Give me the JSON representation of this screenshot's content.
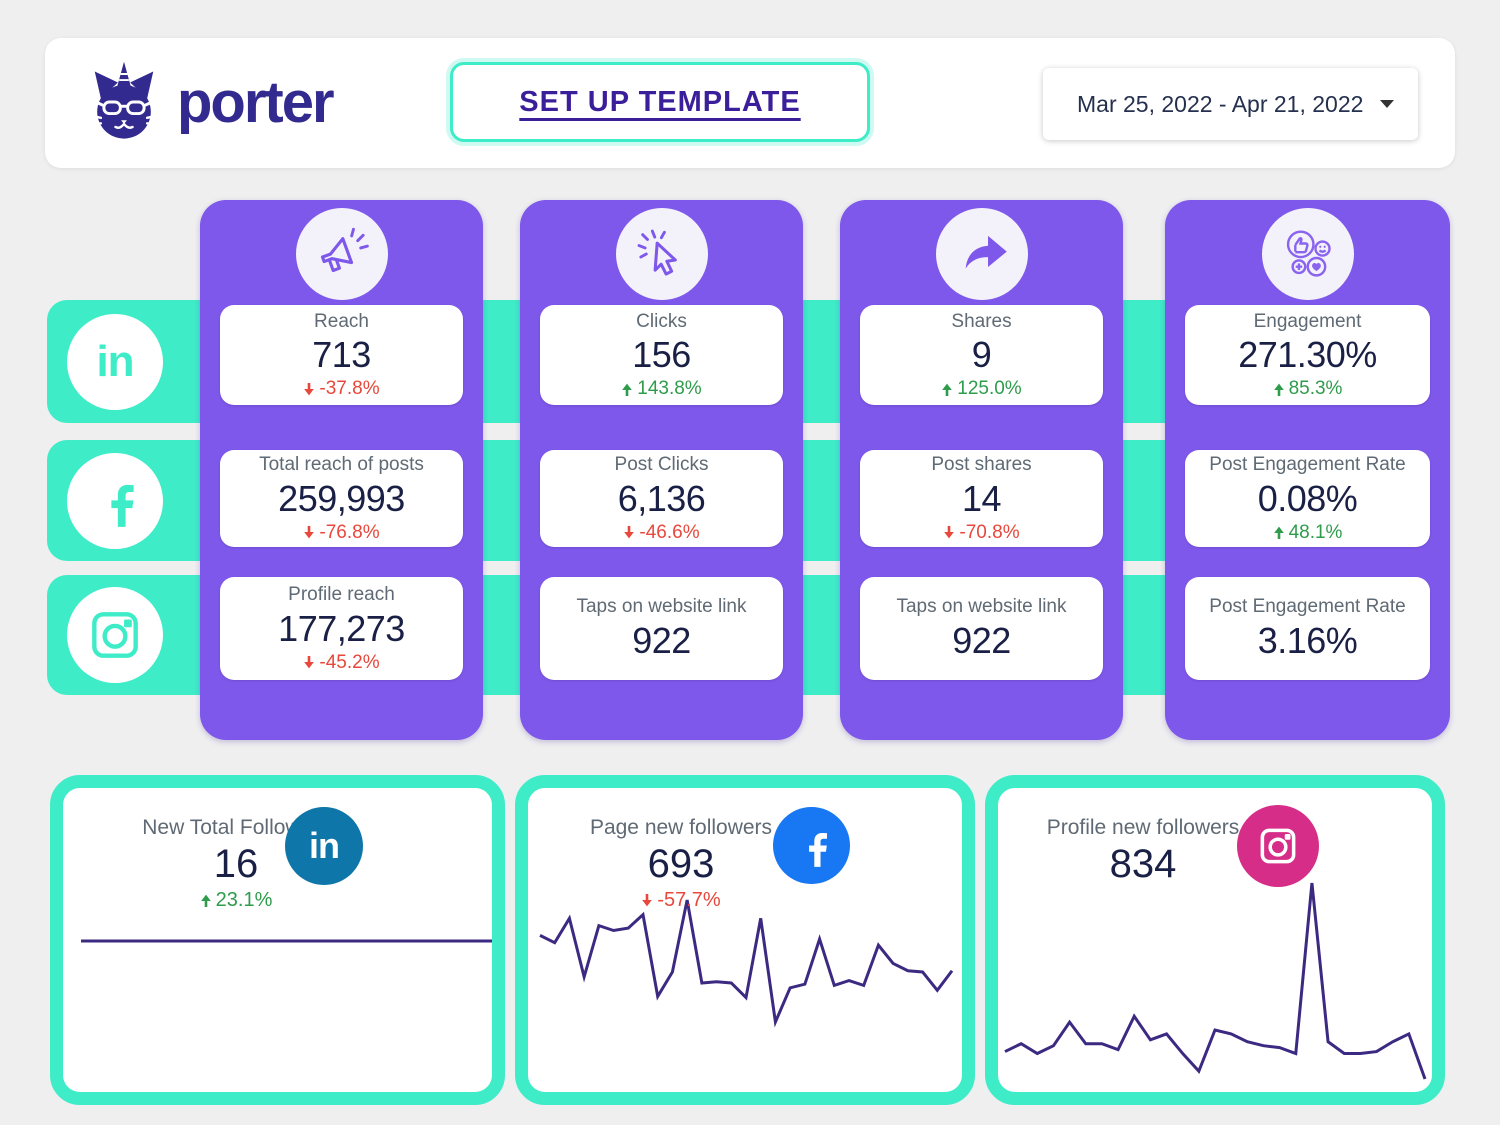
{
  "header": {
    "brand": "porter",
    "setup_button_label": "SET UP TEMPLATE",
    "date_range": "Mar 25, 2022 - Apr 21, 2022"
  },
  "colors": {
    "purple": "#7e57eb",
    "teal": "#3fecc8",
    "value_navy": "#1a2045",
    "delta_red": "#e8473c",
    "delta_green": "#2e9c4b",
    "line_indigo": "#3c2a82",
    "linkedin_blue": "#0e76a8",
    "facebook_blue": "#1877f2",
    "instagram_pink": "#d62d88",
    "logo_indigo": "#322a8e"
  },
  "networks": [
    "linkedin",
    "facebook",
    "instagram"
  ],
  "columns": [
    {
      "icon": "megaphone-icon",
      "metrics": [
        {
          "label": "Reach",
          "value": "713",
          "delta": "-37.8%",
          "trend": "down"
        },
        {
          "label": "Total reach of posts",
          "value": "259,993",
          "delta": "-76.8%",
          "trend": "down"
        },
        {
          "label": "Profile reach",
          "value": "177,273",
          "delta": "-45.2%",
          "trend": "down"
        }
      ]
    },
    {
      "icon": "cursor-click-icon",
      "metrics": [
        {
          "label": "Clicks",
          "value": "156",
          "delta": "143.8%",
          "trend": "up"
        },
        {
          "label": "Post Clicks",
          "value": "6,136",
          "delta": "-46.6%",
          "trend": "down"
        },
        {
          "label": "Taps on website link",
          "value": "922"
        }
      ]
    },
    {
      "icon": "share-arrow-icon",
      "metrics": [
        {
          "label": "Shares",
          "value": "9",
          "delta": "125.0%",
          "trend": "up"
        },
        {
          "label": "Post shares",
          "value": "14",
          "delta": "-70.8%",
          "trend": "down"
        },
        {
          "label": "Taps on website link",
          "value": "922"
        }
      ]
    },
    {
      "icon": "engagement-icon",
      "metrics": [
        {
          "label": "Engagement",
          "value": "271.30%",
          "delta": "85.3%",
          "trend": "up"
        },
        {
          "label": "Post Engagement Rate",
          "value": "0.08%",
          "delta": "48.1%",
          "trend": "up"
        },
        {
          "label": "Post Engagement Rate",
          "value": "3.16%"
        }
      ]
    }
  ],
  "follower_cards": [
    {
      "network": "linkedin",
      "label": "New Total Followers",
      "value": "16",
      "delta": "23.1%",
      "trend": "up"
    },
    {
      "network": "facebook",
      "label": "Page new followers",
      "value": "693",
      "delta": "-57.7%",
      "trend": "down"
    },
    {
      "network": "instagram",
      "label": "Profile new followers",
      "value": "834"
    }
  ],
  "chart_data": [
    {
      "name": "linkedin-new-total-followers",
      "type": "line",
      "title": "New Total Followers",
      "normalized": true,
      "color": "#3c2a82",
      "values": [
        0.5,
        0.5
      ]
    },
    {
      "name": "facebook-page-new-followers",
      "type": "line",
      "title": "Page new followers",
      "normalized": true,
      "color": "#3c2a82",
      "values": [
        0.71,
        0.65,
        0.85,
        0.37,
        0.79,
        0.75,
        0.77,
        0.88,
        0.21,
        0.41,
        1.0,
        0.32,
        0.33,
        0.32,
        0.2,
        0.85,
        0.0,
        0.28,
        0.31,
        0.68,
        0.3,
        0.34,
        0.3,
        0.63,
        0.48,
        0.42,
        0.41,
        0.26,
        0.42
      ]
    },
    {
      "name": "instagram-profile-new-followers",
      "type": "line",
      "title": "Profile new followers",
      "normalized": true,
      "color": "#3c2a82",
      "values": [
        0.14,
        0.18,
        0.13,
        0.17,
        0.29,
        0.18,
        0.18,
        0.15,
        0.32,
        0.2,
        0.23,
        0.13,
        0.04,
        0.25,
        0.23,
        0.19,
        0.17,
        0.16,
        0.13,
        1.0,
        0.19,
        0.13,
        0.13,
        0.14,
        0.19,
        0.23,
        0.0
      ]
    }
  ]
}
